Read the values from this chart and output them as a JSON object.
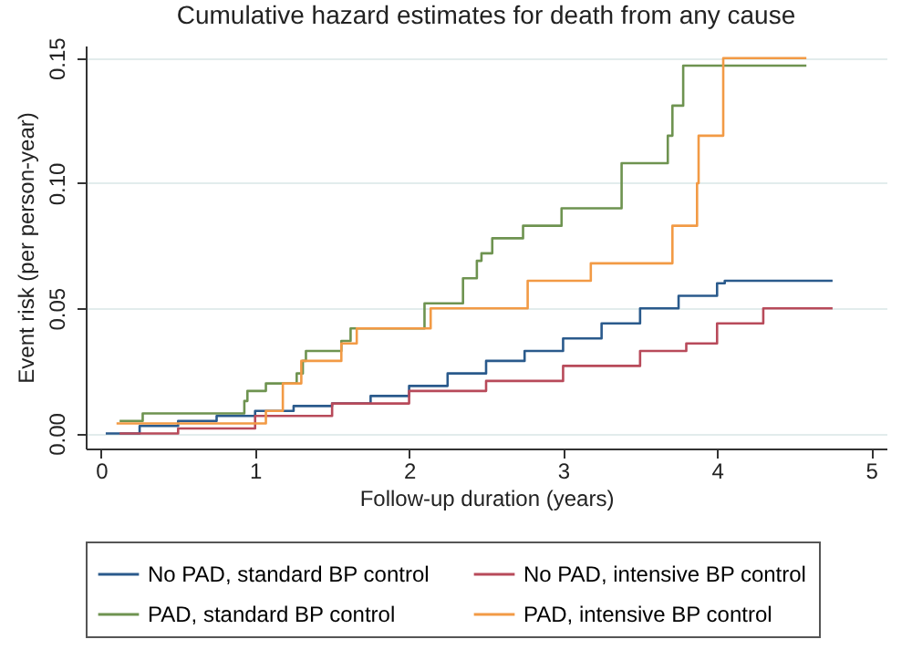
{
  "chart_data": {
    "type": "step",
    "title": "Cumulative hazard estimates for death from any cause",
    "xlabel": "Follow-up duration (years)",
    "ylabel": "Event risk (per person-year)",
    "xlim": [
      -0.1,
      5.1
    ],
    "xticks": [
      0,
      1,
      2,
      3,
      4,
      5
    ],
    "ylim": [
      -0.006,
      0.155
    ],
    "yticks": [
      {
        "value": 0,
        "label": "0.00"
      },
      {
        "value": 0.05,
        "label": "0.05"
      },
      {
        "value": 0.1,
        "label": "0.10"
      },
      {
        "value": 0.15,
        "label": "0.15"
      }
    ],
    "grid": "y",
    "legend": "bottom",
    "line_style": "solid",
    "series": [
      {
        "name": "No PAD, standard BP control",
        "color": "#2a5a8c",
        "x": [
          0.03,
          0.25,
          0.5,
          0.75,
          1,
          1.25,
          1.5,
          1.75,
          2,
          2.25,
          2.5,
          2.75,
          3,
          3.25,
          3.5,
          3.75,
          4,
          4.05,
          4.75
        ],
        "values": [
          0,
          0.003,
          0.005,
          0.007,
          0.009,
          0.011,
          0.012,
          0.015,
          0.019,
          0.024,
          0.029,
          0.033,
          0.038,
          0.044,
          0.05,
          0.055,
          0.06,
          0.061,
          0.061
        ]
      },
      {
        "name": "No PAD, intensive BP control",
        "color": "#b84a5a",
        "x": [
          0.12,
          0.5,
          1,
          1.5,
          2,
          2.5,
          3,
          3.5,
          3.8,
          4,
          4.3,
          4.75
        ],
        "values": [
          0,
          0.002,
          0.007,
          0.012,
          0.017,
          0.021,
          0.027,
          0.033,
          0.036,
          0.044,
          0.05,
          0.05
        ]
      },
      {
        "name": "PAD, standard BP control",
        "color": "#6e9350",
        "x": [
          0.12,
          0.27,
          0.93,
          0.95,
          1.07,
          1.27,
          1.31,
          1.33,
          1.56,
          1.62,
          2.1,
          2.35,
          2.44,
          2.47,
          2.54,
          2.74,
          2.99,
          3.38,
          3.68,
          3.71,
          3.78,
          4.58
        ],
        "values": [
          0.005,
          0.008,
          0.013,
          0.017,
          0.02,
          0.024,
          0.029,
          0.033,
          0.037,
          0.042,
          0.052,
          0.062,
          0.069,
          0.072,
          0.078,
          0.083,
          0.09,
          0.108,
          0.119,
          0.131,
          0.147,
          0.147
        ]
      },
      {
        "name": "PAD, intensive BP control",
        "color": "#f29a45",
        "x": [
          0.1,
          1.07,
          1.18,
          1.3,
          1.56,
          1.66,
          2.14,
          2.77,
          3.18,
          3.71,
          3.87,
          3.88,
          4.04,
          4.58
        ],
        "values": [
          0.004,
          0.009,
          0.02,
          0.029,
          0.036,
          0.042,
          0.05,
          0.061,
          0.068,
          0.083,
          0.1,
          0.119,
          0.15,
          0.15
        ]
      }
    ]
  }
}
